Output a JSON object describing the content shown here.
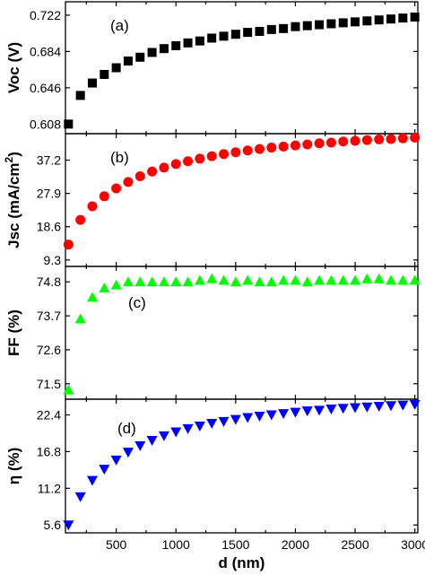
{
  "chart_data": [
    {
      "type": "scatter",
      "panel_label": "(a)",
      "ylabel": "Voc (V)",
      "yticks": [
        "0.608",
        "0.646",
        "0.684",
        "0.722"
      ],
      "ylim": [
        0.598,
        0.736
      ],
      "xlim": [
        75,
        3025
      ],
      "marker": "square",
      "color": "#000000",
      "x": [
        100,
        200,
        300,
        400,
        500,
        600,
        700,
        800,
        900,
        1000,
        1100,
        1200,
        1300,
        1400,
        1500,
        1600,
        1700,
        1800,
        1900,
        2000,
        2100,
        2200,
        2300,
        2400,
        2500,
        2600,
        2700,
        2800,
        2900,
        3000
      ],
      "y": [
        0.608,
        0.638,
        0.651,
        0.66,
        0.667,
        0.674,
        0.678,
        0.683,
        0.687,
        0.69,
        0.693,
        0.695,
        0.698,
        0.7,
        0.702,
        0.704,
        0.705,
        0.707,
        0.708,
        0.71,
        0.711,
        0.712,
        0.713,
        0.714,
        0.715,
        0.716,
        0.717,
        0.718,
        0.719,
        0.72
      ]
    },
    {
      "type": "scatter",
      "panel_label": "(b)",
      "ylabel": "Jsc (mA/cm",
      "ylabel_sup": "2",
      "ylabel_close": ")",
      "yticks": [
        "9.3",
        "18.6",
        "27.9",
        "37.2"
      ],
      "ylim": [
        7.5,
        44.6
      ],
      "xlim": [
        75,
        3025
      ],
      "marker": "circle",
      "color": "#ff0000",
      "x": [
        100,
        200,
        300,
        400,
        500,
        600,
        700,
        800,
        900,
        1000,
        1100,
        1200,
        1300,
        1400,
        1500,
        1600,
        1700,
        1800,
        1900,
        2000,
        2100,
        2200,
        2300,
        2400,
        2500,
        2600,
        2700,
        2800,
        2900,
        3000
      ],
      "y": [
        13.6,
        20.5,
        24.3,
        27.1,
        29.3,
        31.1,
        32.7,
        34.0,
        35.1,
        36.1,
        36.9,
        37.6,
        38.3,
        38.9,
        39.4,
        39.9,
        40.3,
        40.7,
        41.0,
        41.3,
        41.6,
        41.9,
        42.1,
        42.4,
        42.6,
        42.8,
        43.0,
        43.1,
        43.3,
        43.5
      ]
    },
    {
      "type": "scatter",
      "panel_label": "(c)",
      "ylabel": "FF (%)",
      "yticks": [
        "71.5",
        "72.6",
        "73.7",
        "74.8"
      ],
      "ylim": [
        71.0,
        75.3
      ],
      "xlim": [
        75,
        3025
      ],
      "marker": "triangle-up",
      "color": "#00ff00",
      "x": [
        100,
        200,
        300,
        400,
        500,
        600,
        700,
        800,
        900,
        1000,
        1100,
        1200,
        1300,
        1400,
        1500,
        1600,
        1700,
        1800,
        1900,
        2000,
        2100,
        2200,
        2300,
        2400,
        2500,
        2600,
        2700,
        2800,
        2900,
        3000
      ],
      "y": [
        71.3,
        73.6,
        74.3,
        74.6,
        74.7,
        74.8,
        74.8,
        74.8,
        74.8,
        74.8,
        74.8,
        74.85,
        74.9,
        74.85,
        74.8,
        74.85,
        74.8,
        74.8,
        74.85,
        74.85,
        74.8,
        74.85,
        74.85,
        74.85,
        74.85,
        74.9,
        74.9,
        74.85,
        74.85,
        74.85
      ]
    },
    {
      "type": "scatter",
      "panel_label": "(d)",
      "ylabel": "η (%)",
      "yticks": [
        "5.6",
        "11.2",
        "16.8",
        "22.4"
      ],
      "ylim": [
        4.4,
        24.8
      ],
      "xlim": [
        75,
        3025
      ],
      "marker": "triangle-down",
      "color": "#0000ff",
      "xlabel": "d (nm)",
      "xticks": [
        "500",
        "1000",
        "1500",
        "2000",
        "2500",
        "3000"
      ],
      "x": [
        100,
        200,
        300,
        400,
        500,
        600,
        700,
        800,
        900,
        1000,
        1100,
        1200,
        1300,
        1400,
        1500,
        1600,
        1700,
        1800,
        1900,
        2000,
        2100,
        2200,
        2300,
        2400,
        2500,
        2600,
        2700,
        2800,
        2900,
        3000
      ],
      "y": [
        5.6,
        9.9,
        12.4,
        14.1,
        15.5,
        16.7,
        17.7,
        18.5,
        19.2,
        19.8,
        20.3,
        20.7,
        21.1,
        21.4,
        21.7,
        22.0,
        22.2,
        22.4,
        22.6,
        22.8,
        23.0,
        23.1,
        23.3,
        23.4,
        23.5,
        23.6,
        23.7,
        23.8,
        23.9,
        24.0
      ]
    }
  ]
}
